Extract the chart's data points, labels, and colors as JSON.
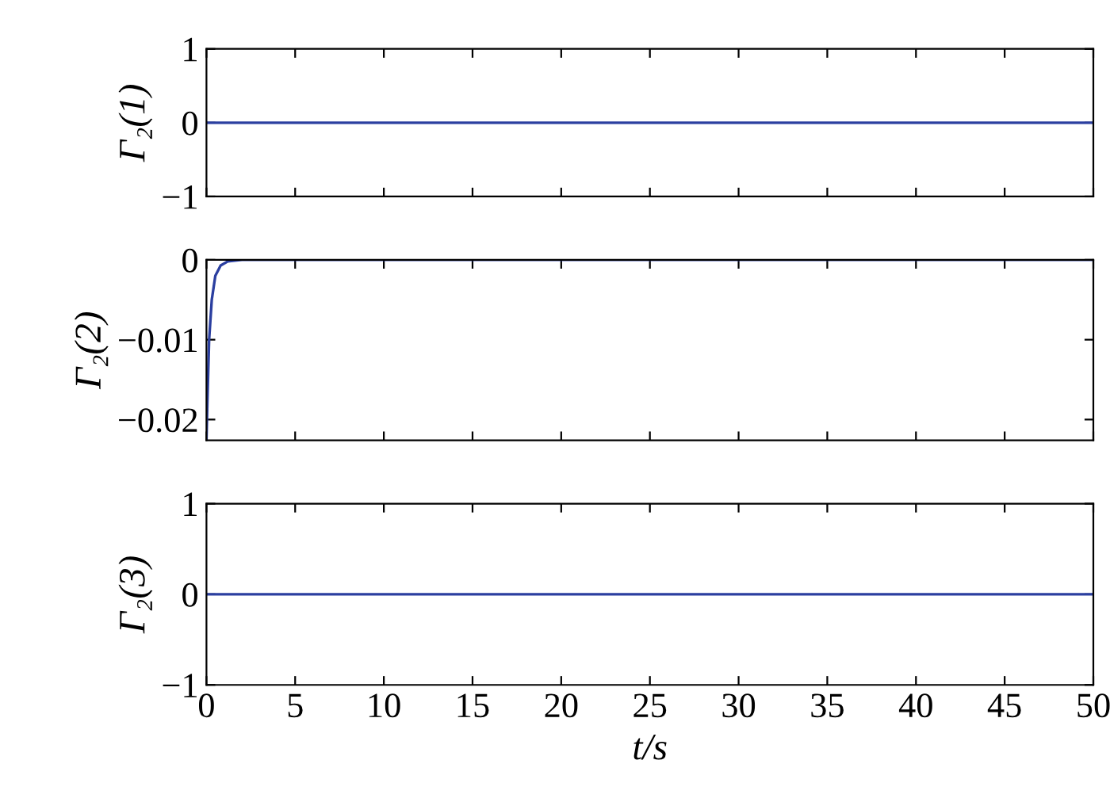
{
  "chart_data": [
    {
      "type": "line",
      "ylabel": "Γ₂(1)",
      "x": [
        0,
        50
      ],
      "series": [
        {
          "color": "#2b3fa0",
          "values": [
            0,
            0
          ]
        }
      ],
      "xlim": [
        0,
        50
      ],
      "xticks": [
        0,
        5,
        10,
        15,
        20,
        25,
        30,
        35,
        40,
        45,
        50
      ],
      "ylim": [
        -1,
        1
      ],
      "yticks": [
        {
          "value": -1,
          "label": "−1"
        },
        0,
        1
      ],
      "tick_labels": "y",
      "grid": false,
      "legend": false
    },
    {
      "type": "line",
      "ylabel": "Γ₂(2)",
      "x": [
        0,
        0.05,
        0.15,
        0.3,
        0.5,
        0.8,
        1.2,
        2,
        50
      ],
      "series": [
        {
          "color": "#2b3fa0",
          "values": [
            -0.0226,
            -0.018,
            -0.01,
            -0.005,
            -0.002,
            -0.0007,
            -0.0002,
            0,
            0
          ]
        }
      ],
      "xlim": [
        0,
        50
      ],
      "xticks": [
        0,
        5,
        10,
        15,
        20,
        25,
        30,
        35,
        40,
        45,
        50
      ],
      "ylim": [
        -0.0226,
        0
      ],
      "yticks": [
        {
          "value": -0.02,
          "label": "−0.02"
        },
        {
          "value": -0.01,
          "label": "−0.01"
        },
        0
      ],
      "tick_labels": "y",
      "grid": false,
      "legend": false
    },
    {
      "type": "line",
      "ylabel": "Γ₂(3)",
      "xlabel": "t/s",
      "x": [
        0,
        50
      ],
      "series": [
        {
          "color": "#2b3fa0",
          "values": [
            0,
            0
          ]
        }
      ],
      "xlim": [
        0,
        50
      ],
      "xticks": [
        0,
        5,
        10,
        15,
        20,
        25,
        30,
        35,
        40,
        45,
        50
      ],
      "ylim": [
        -1,
        1
      ],
      "yticks": [
        {
          "value": -1,
          "label": "−1"
        },
        0,
        1
      ],
      "grid": false,
      "legend": false
    }
  ]
}
